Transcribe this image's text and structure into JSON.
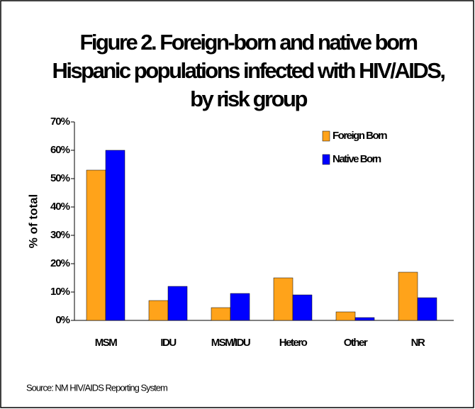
{
  "chart_data": {
    "type": "bar",
    "title": [
      "Figure 2. Foreign-born and native born",
      "Hispanic populations infected with HIV/AIDS,",
      "by risk group"
    ],
    "y_label": "% of total",
    "categories": [
      "MSM",
      "IDU",
      "MSM/IDU",
      "Hetero",
      "Other",
      "NR"
    ],
    "series": [
      {
        "name": "Foreign Born",
        "color": "#ffa31a",
        "values": [
          53,
          7,
          4.5,
          15,
          3,
          17
        ]
      },
      {
        "name": "Native Born",
        "color": "#0000ff",
        "values": [
          60,
          12,
          9.5,
          9,
          1,
          8
        ]
      }
    ],
    "ylim": [
      0,
      70
    ],
    "yticks": [
      {
        "value": 0,
        "label": "0%"
      },
      {
        "value": 10,
        "label": "10%"
      },
      {
        "value": 20,
        "label": "20%"
      },
      {
        "value": 30,
        "label": "30%"
      },
      {
        "value": 40,
        "label": "40%"
      },
      {
        "value": 50,
        "label": "50%"
      },
      {
        "value": 60,
        "label": "60%"
      },
      {
        "value": 70,
        "label": "70%"
      }
    ],
    "grid": false,
    "legend": "top-right",
    "source": "Source: NM HIV/AIDS Reporting System"
  }
}
